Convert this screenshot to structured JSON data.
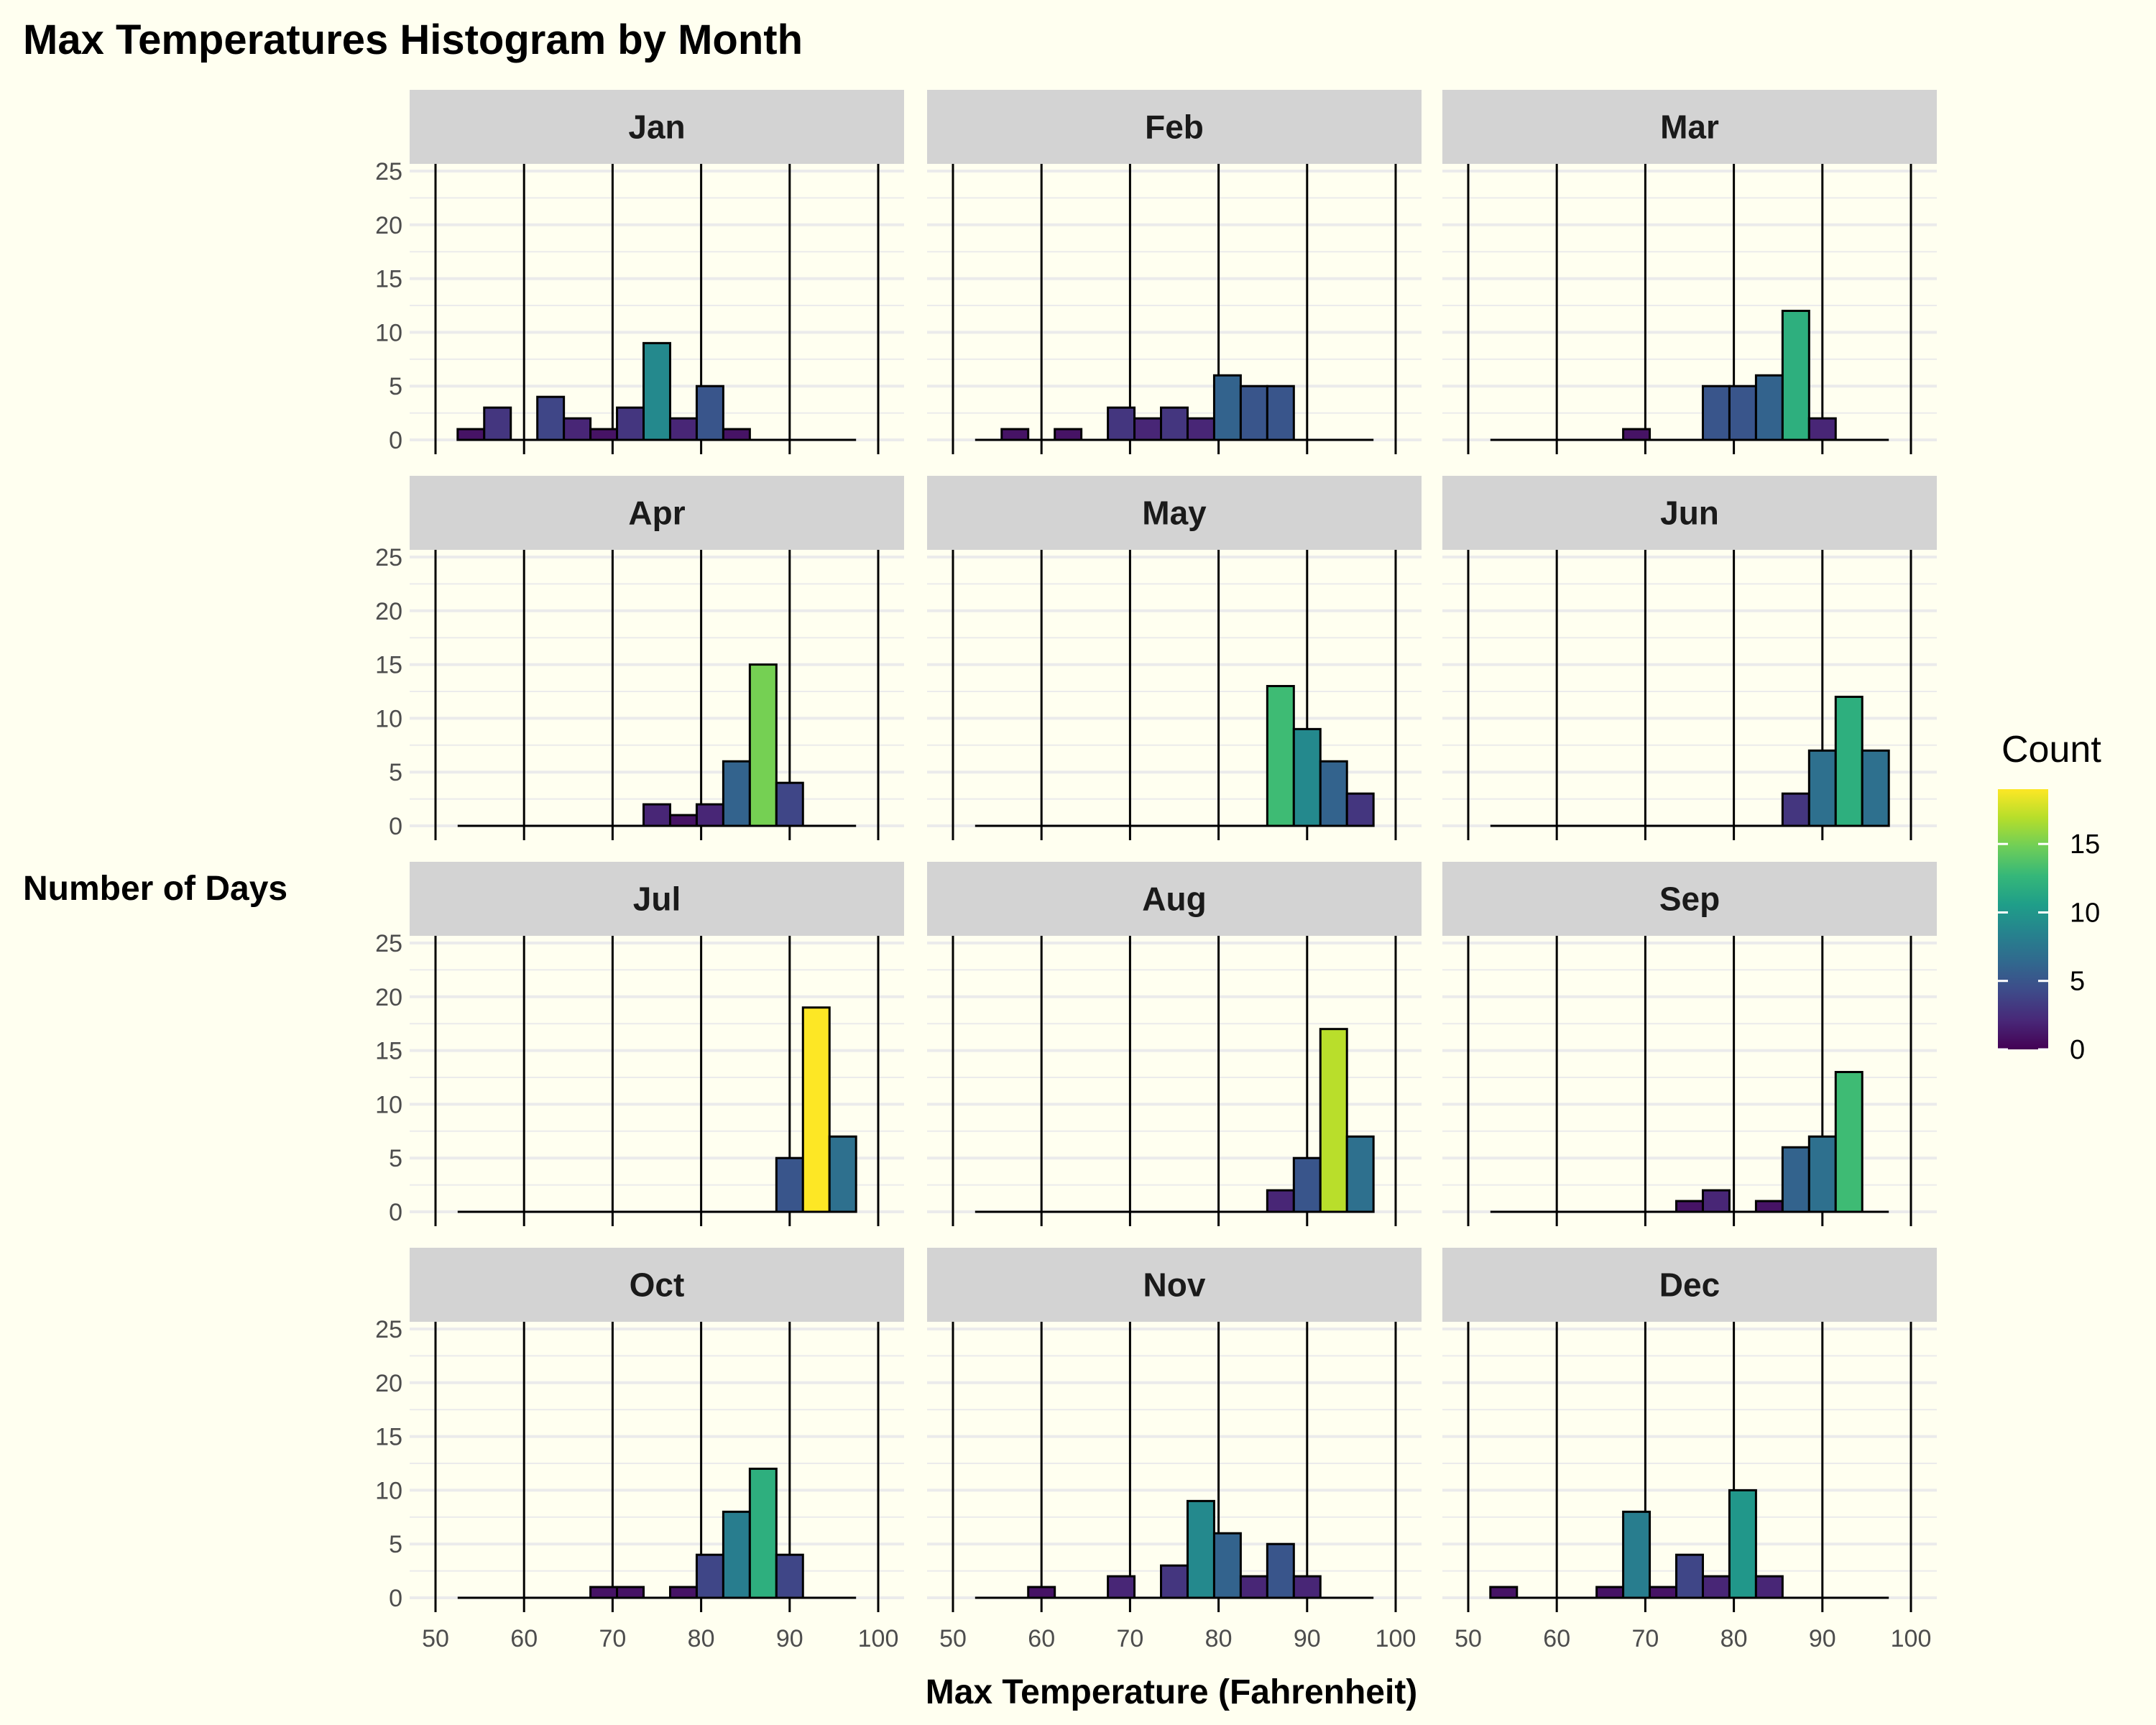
{
  "chart_data": {
    "type": "bar",
    "title": "Max Temperatures Histogram by Month",
    "xlabel": "Max Temperature (Fahrenheit)",
    "ylabel": "Number of Days",
    "xlim": [
      50,
      100
    ],
    "ylim": [
      0,
      25
    ],
    "x_ticks": [
      50,
      60,
      70,
      80,
      90,
      100
    ],
    "y_ticks": [
      0,
      5,
      10,
      15,
      20,
      25
    ],
    "bin_width": 3,
    "bin_centers": [
      54,
      57,
      60,
      63,
      66,
      69,
      72,
      75,
      78,
      81,
      84,
      87,
      90,
      93,
      96
    ],
    "panels": [
      {
        "month": "Jan",
        "counts": [
          1,
          3,
          0,
          4,
          2,
          1,
          3,
          9,
          2,
          5,
          1,
          0,
          0,
          0,
          0
        ]
      },
      {
        "month": "Feb",
        "counts": [
          0,
          1,
          0,
          1,
          0,
          3,
          2,
          3,
          2,
          6,
          5,
          5,
          0,
          0,
          0
        ]
      },
      {
        "month": "Mar",
        "counts": [
          0,
          0,
          0,
          0,
          0,
          1,
          0,
          0,
          5,
          5,
          6,
          12,
          2,
          0,
          0
        ]
      },
      {
        "month": "Apr",
        "counts": [
          0,
          0,
          0,
          0,
          0,
          0,
          0,
          2,
          1,
          2,
          6,
          15,
          4,
          0,
          0
        ]
      },
      {
        "month": "May",
        "counts": [
          0,
          0,
          0,
          0,
          0,
          0,
          0,
          0,
          0,
          0,
          0,
          13,
          9,
          6,
          3
        ]
      },
      {
        "month": "Jun",
        "counts": [
          0,
          0,
          0,
          0,
          0,
          0,
          0,
          0,
          0,
          0,
          0,
          3,
          7,
          12,
          7
        ]
      },
      {
        "month": "Jul",
        "counts": [
          0,
          0,
          0,
          0,
          0,
          0,
          0,
          0,
          0,
          0,
          0,
          0,
          5,
          19,
          7
        ]
      },
      {
        "month": "Aug",
        "counts": [
          0,
          0,
          0,
          0,
          0,
          0,
          0,
          0,
          0,
          0,
          0,
          2,
          5,
          17,
          7
        ]
      },
      {
        "month": "Sep",
        "counts": [
          0,
          0,
          0,
          0,
          0,
          0,
          0,
          1,
          2,
          0,
          1,
          6,
          7,
          13,
          0
        ]
      },
      {
        "month": "Oct",
        "counts": [
          0,
          0,
          0,
          0,
          0,
          1,
          1,
          0,
          1,
          4,
          8,
          12,
          4,
          0,
          0
        ]
      },
      {
        "month": "Nov",
        "counts": [
          0,
          0,
          1,
          0,
          0,
          2,
          0,
          3,
          9,
          6,
          2,
          5,
          2,
          0,
          0
        ]
      },
      {
        "month": "Dec",
        "counts": [
          1,
          0,
          0,
          0,
          1,
          8,
          1,
          4,
          2,
          10,
          2,
          0,
          0,
          0,
          0
        ]
      }
    ],
    "legend": {
      "title": "Count",
      "ticks": [
        0,
        5,
        10,
        15
      ],
      "range": [
        0,
        19
      ],
      "palette": "viridis",
      "placement": "right"
    },
    "grid": true,
    "colors": {
      "background": "#fffff0",
      "strip": "#d3d3d3",
      "grid_minor": "#ebebeb",
      "vline": "#000000",
      "bar_outline": "#000000"
    }
  }
}
